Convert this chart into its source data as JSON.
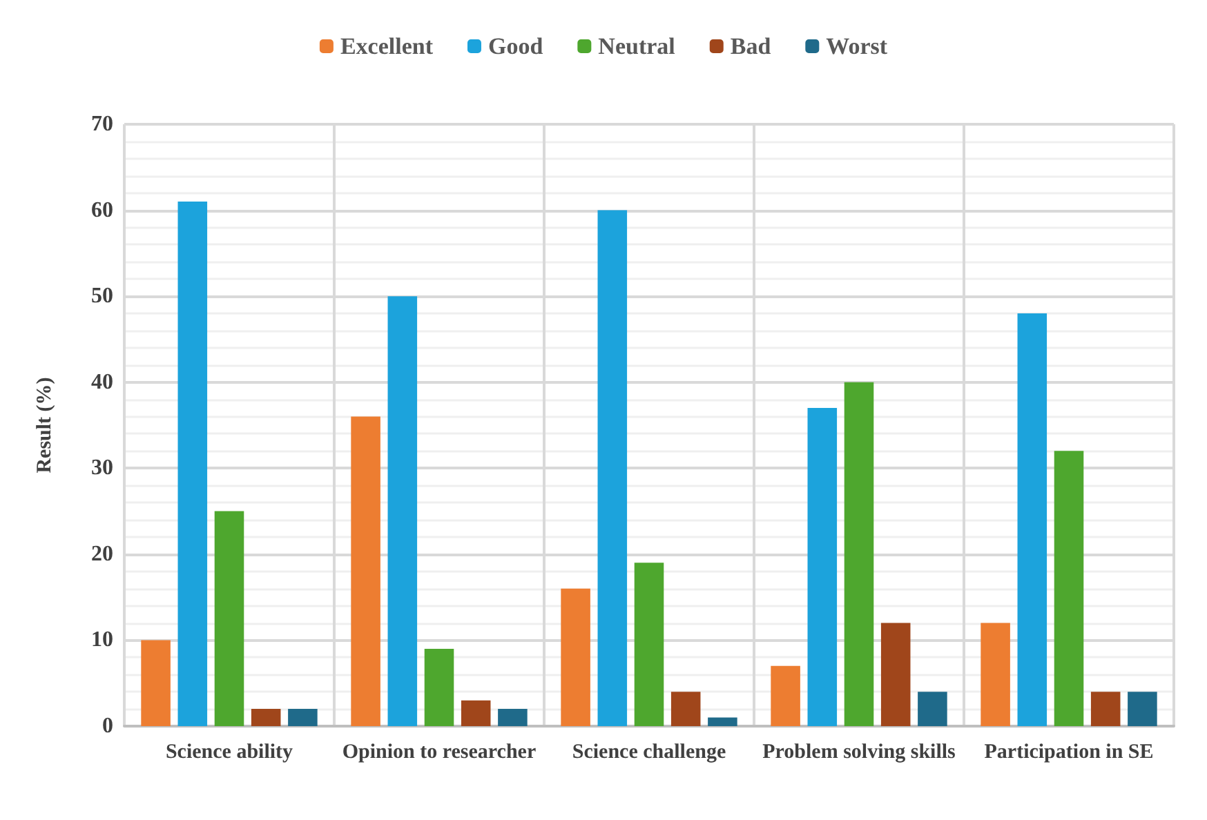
{
  "chart_data": {
    "type": "bar",
    "ylabel": "Result (%)",
    "categories": [
      "Science ability",
      "Opinion to researcher",
      "Science challenge",
      "Problem solving skills",
      "Participation in SE"
    ],
    "series": [
      {
        "name": "Excellent",
        "color": "#ed7d31",
        "values": [
          10,
          36,
          16,
          7,
          12
        ]
      },
      {
        "name": "Good",
        "color": "#1ca3dc",
        "values": [
          61,
          50,
          60,
          37,
          48
        ]
      },
      {
        "name": "Neutral",
        "color": "#4ea72e",
        "values": [
          25,
          9,
          19,
          40,
          32
        ]
      },
      {
        "name": "Bad",
        "color": "#a0461b",
        "values": [
          2,
          3,
          4,
          12,
          4
        ]
      },
      {
        "name": "Worst",
        "color": "#1f6a8a",
        "values": [
          2,
          2,
          1,
          4,
          4
        ]
      }
    ],
    "ylim": [
      0,
      70
    ],
    "yticks": [
      0,
      10,
      20,
      30,
      40,
      50,
      60,
      70
    ],
    "grid": true,
    "legend": "top"
  }
}
